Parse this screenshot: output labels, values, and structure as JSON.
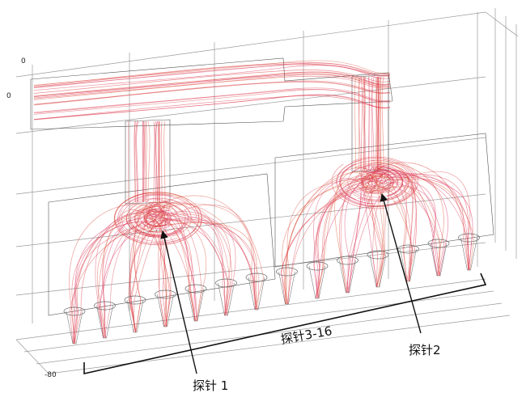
{
  "axes": {
    "top_label": "0",
    "left_label": "0",
    "bottom_label": "-80"
  },
  "annotations": {
    "probe_1": "探针 1",
    "probe_2": "探针2",
    "probes_3_16": "探针3-16"
  }
}
